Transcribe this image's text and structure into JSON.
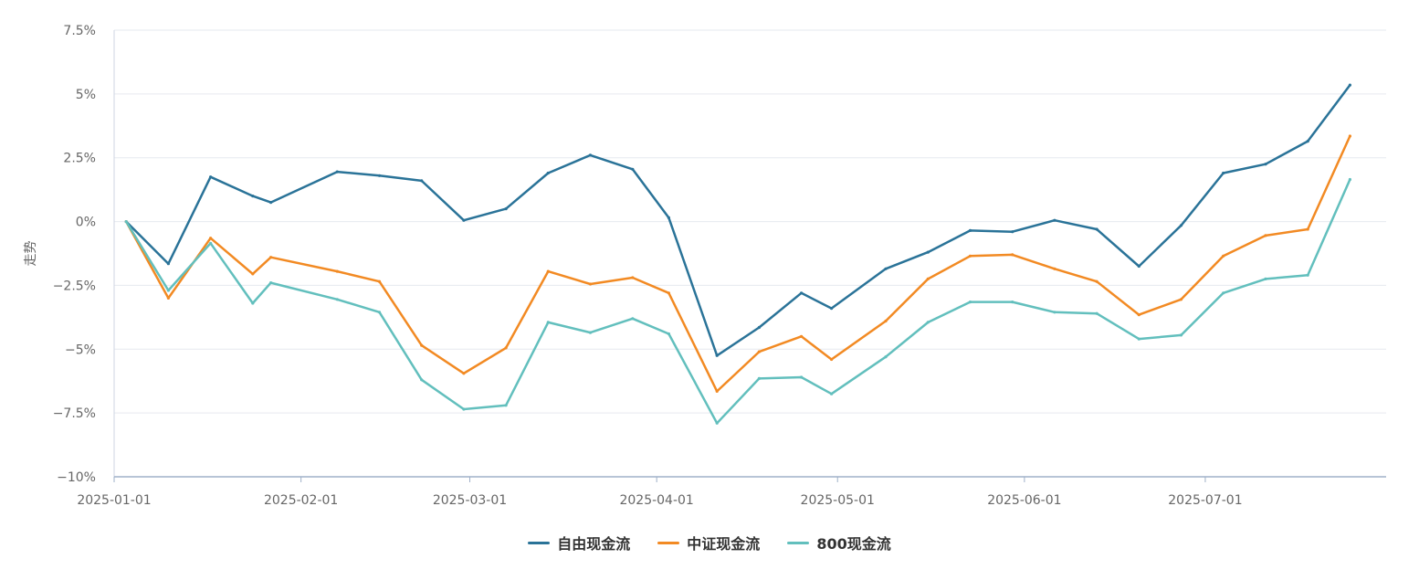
{
  "chart_data": {
    "type": "line",
    "ylabel": "走势",
    "xlabel": "",
    "ylim": [
      -10,
      7.5
    ],
    "yticks": [
      7.5,
      5,
      2.5,
      0,
      -2.5,
      -5,
      -7.5,
      -10
    ],
    "ytick_labels": [
      "7.5%",
      "5%",
      "2.5%",
      "0%",
      "−2.5%",
      "−5%",
      "−7.5%",
      "−10%"
    ],
    "xlim": [
      "2025-01-01",
      "2025-07-31"
    ],
    "xticks": [
      "2025-01-01",
      "2025-02-01",
      "2025-03-01",
      "2025-04-01",
      "2025-05-01",
      "2025-06-01",
      "2025-07-01"
    ],
    "grid": true,
    "legend_position": "bottom",
    "x": [
      "2025-01-03",
      "2025-01-10",
      "2025-01-17",
      "2025-01-24",
      "2025-01-27",
      "2025-02-07",
      "2025-02-14",
      "2025-02-21",
      "2025-02-28",
      "2025-03-07",
      "2025-03-14",
      "2025-03-21",
      "2025-03-28",
      "2025-04-03",
      "2025-04-11",
      "2025-04-18",
      "2025-04-25",
      "2025-04-30",
      "2025-05-09",
      "2025-05-16",
      "2025-05-23",
      "2025-05-30",
      "2025-06-06",
      "2025-06-13",
      "2025-06-20",
      "2025-06-27",
      "2025-07-04",
      "2025-07-11",
      "2025-07-18",
      "2025-07-25"
    ],
    "series": [
      {
        "name": "自由现金流",
        "color": "#2a7398",
        "values": [
          0,
          -1.65,
          1.75,
          1.0,
          0.75,
          1.95,
          1.8,
          1.6,
          0.05,
          0.5,
          1.9,
          2.6,
          2.05,
          0.15,
          -5.25,
          -4.15,
          -2.8,
          -3.4,
          -1.85,
          -1.2,
          -0.35,
          -0.4,
          0.05,
          -0.3,
          -1.75,
          -0.15,
          1.9,
          2.25,
          3.15,
          5.35
        ]
      },
      {
        "name": "中证现金流",
        "color": "#f28a23",
        "values": [
          0,
          -3.0,
          -0.65,
          -2.05,
          -1.4,
          -1.95,
          -2.35,
          -4.85,
          -5.95,
          -4.95,
          -1.95,
          -2.45,
          -2.2,
          -2.8,
          -6.65,
          -5.1,
          -4.5,
          -5.4,
          -3.9,
          -2.25,
          -1.35,
          -1.3,
          -1.85,
          -2.35,
          -3.65,
          -3.05,
          -1.35,
          -0.55,
          -0.3,
          3.35
        ]
      },
      {
        "name": "800现金流",
        "color": "#62bfbd",
        "values": [
          0,
          -2.7,
          -0.85,
          -3.2,
          -2.4,
          -3.05,
          -3.55,
          -6.2,
          -7.35,
          -7.2,
          -3.95,
          -4.35,
          -3.8,
          -4.4,
          -7.9,
          -6.15,
          -6.1,
          -6.75,
          -5.3,
          -3.95,
          -3.15,
          -3.15,
          -3.55,
          -3.6,
          -4.6,
          -4.45,
          -2.8,
          -2.25,
          -2.1,
          1.65
        ]
      }
    ]
  }
}
